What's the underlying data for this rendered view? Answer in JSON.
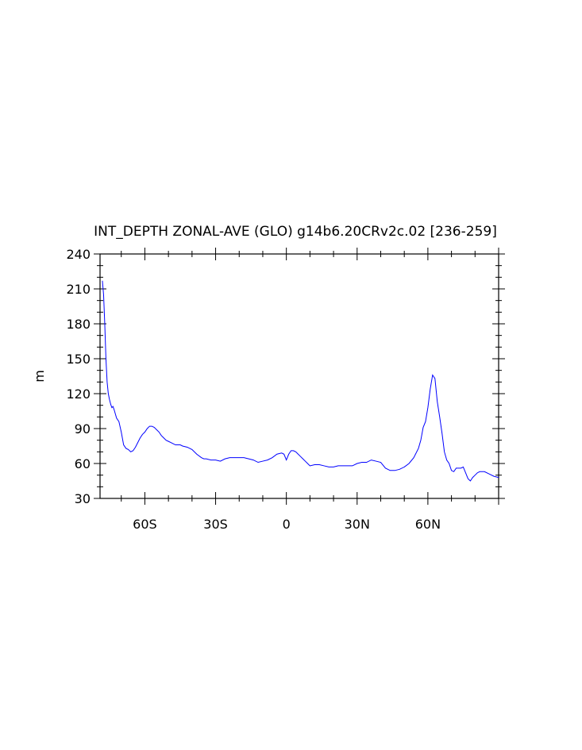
{
  "chart_data": {
    "type": "line",
    "title": "INT_DEPTH ZONAL-AVE (GLO) g14b6.20CRv2c.02 [236-259]",
    "xlabel": "",
    "ylabel": "m",
    "xlim": [
      -79,
      90
    ],
    "ylim": [
      30,
      240
    ],
    "x_ticks": [
      {
        "value": -60,
        "label": "60S"
      },
      {
        "value": -30,
        "label": "30S"
      },
      {
        "value": 0,
        "label": "0"
      },
      {
        "value": 30,
        "label": "30N"
      },
      {
        "value": 60,
        "label": "60N"
      }
    ],
    "y_ticks": [
      30,
      60,
      90,
      120,
      150,
      180,
      210,
      240
    ],
    "grid": false,
    "series": [
      {
        "color": "#0000ff",
        "x": [
          -78,
          -77.5,
          -77,
          -76.5,
          -76,
          -75.5,
          -75,
          -74.5,
          -74,
          -73.5,
          -73,
          -72,
          -71,
          -70,
          -69,
          -68,
          -67,
          -66,
          -65,
          -64,
          -63,
          -62,
          -61,
          -60,
          -59,
          -58,
          -57,
          -56,
          -55,
          -54,
          -53,
          -52,
          -51,
          -50,
          -49,
          -48,
          -47,
          -46,
          -45,
          -44,
          -42,
          -40,
          -38,
          -36,
          -35,
          -34,
          -32,
          -30,
          -28,
          -26,
          -24,
          -22,
          -20,
          -18,
          -16,
          -14,
          -12,
          -10,
          -8,
          -6,
          -4,
          -2,
          -1,
          0,
          1,
          2,
          3,
          4,
          5,
          6,
          7,
          8,
          9,
          10,
          12,
          14,
          16,
          18,
          20,
          22,
          24,
          26,
          28,
          30,
          32,
          34,
          36,
          38,
          40,
          42,
          44,
          46,
          48,
          50,
          52,
          54,
          56,
          57,
          58,
          59,
          60,
          61,
          62,
          63,
          64,
          65,
          66,
          67,
          68,
          69,
          70,
          71,
          72,
          73,
          74,
          75,
          76,
          77,
          78,
          79,
          80,
          81,
          82,
          84,
          86,
          88,
          90
        ],
        "y": [
          217,
          205,
          180,
          150,
          130,
          120,
          115,
          111,
          108,
          109,
          106,
          99,
          96,
          87,
          76,
          73,
          72,
          70,
          71,
          74,
          78,
          82,
          85,
          87,
          90,
          92,
          92,
          91,
          89,
          87,
          84,
          82,
          80,
          79,
          78,
          77,
          76,
          76,
          76,
          75,
          74,
          72,
          68,
          65,
          64,
          64,
          63,
          63,
          62,
          64,
          65,
          65,
          65,
          65,
          64,
          63,
          61,
          62,
          63,
          65,
          68,
          69,
          68,
          63,
          68,
          71,
          71,
          70,
          68,
          66,
          64,
          62,
          60,
          58,
          59,
          59,
          58,
          57,
          57,
          58,
          58,
          58,
          58,
          60,
          61,
          61,
          63,
          62,
          61,
          56,
          54,
          54,
          55,
          57,
          60,
          65,
          73,
          80,
          91,
          96,
          108,
          124,
          136,
          133,
          113,
          100,
          86,
          70,
          63,
          60,
          54,
          53,
          56,
          56,
          56,
          57,
          52,
          47,
          45,
          48,
          50,
          52,
          53,
          53,
          51,
          49,
          48
        ]
      }
    ]
  }
}
